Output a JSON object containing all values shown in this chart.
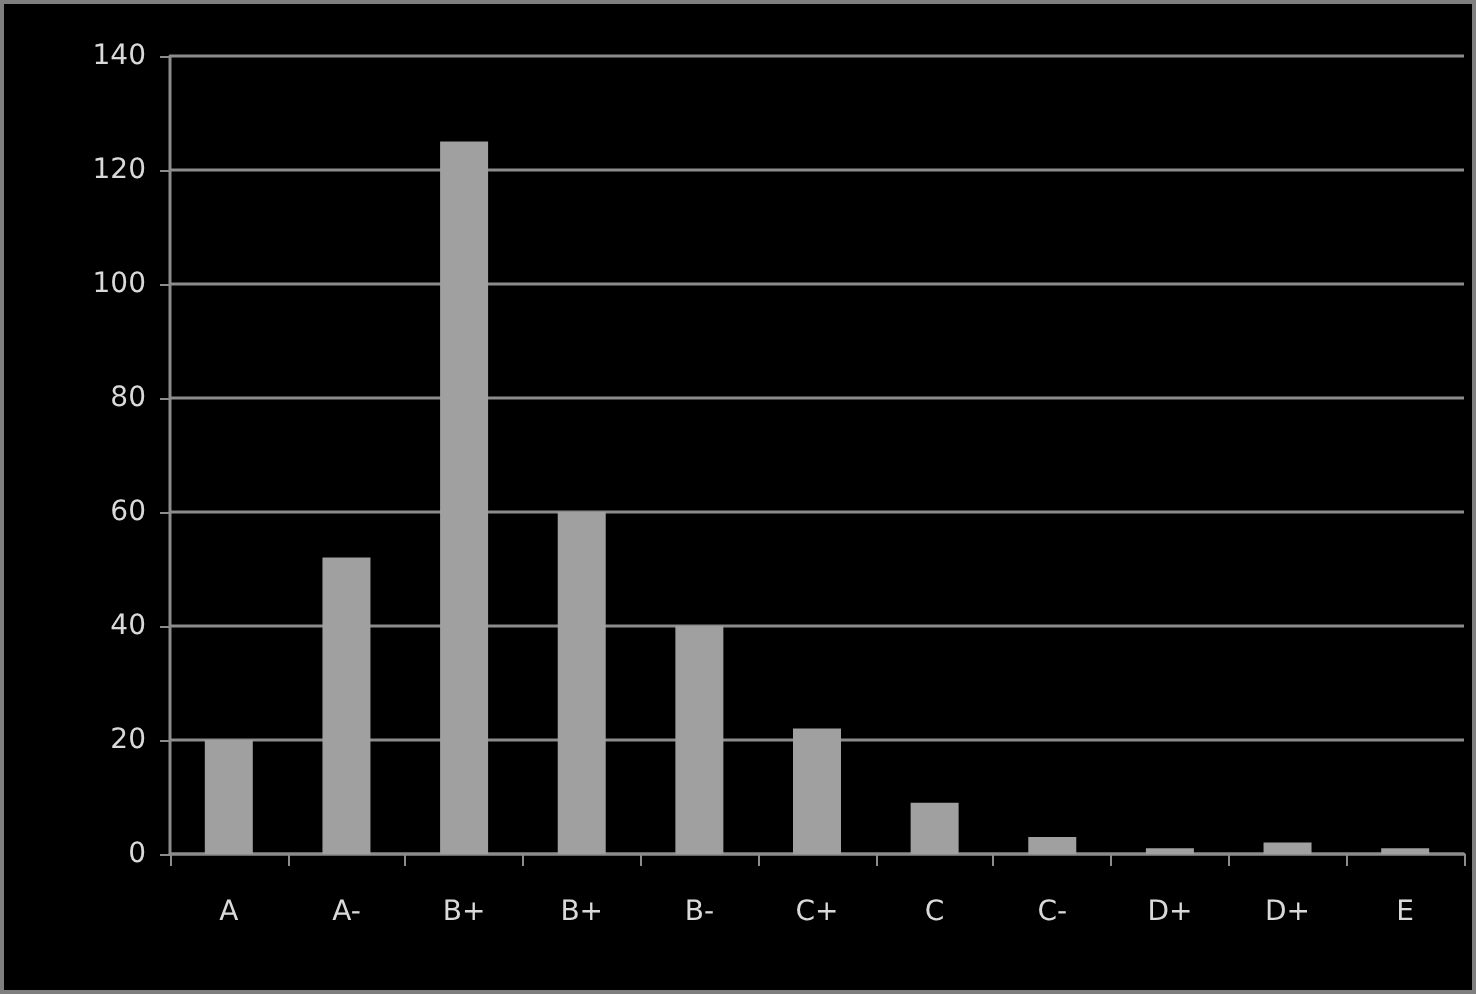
{
  "chart_data": {
    "type": "bar",
    "categories": [
      "A",
      "A-",
      "B+",
      "B+",
      "B-",
      "C+",
      "C",
      "C-",
      "D+",
      "D+",
      "E"
    ],
    "values": [
      20,
      52,
      125,
      60,
      40,
      22,
      9,
      3,
      1,
      2,
      1
    ],
    "color": "#a0a0a0",
    "ylim": [
      0,
      140
    ],
    "yticks": [
      0,
      20,
      40,
      60,
      80,
      100,
      120,
      140
    ],
    "grid": "y"
  }
}
